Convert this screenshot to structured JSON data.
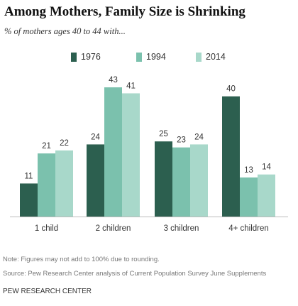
{
  "title": "Among Mothers, Family Size is Shrinking",
  "subtitle": "% of mothers ages 40 to 44 with...",
  "legend": [
    {
      "label": "1976",
      "color": "#2c5f4f"
    },
    {
      "label": "1994",
      "color": "#7bc1ad"
    },
    {
      "label": "2014",
      "color": "#a8d8ca"
    }
  ],
  "chart_data": {
    "type": "bar",
    "categories": [
      "1 child",
      "2 children",
      "3 children",
      "4+ children"
    ],
    "series": [
      {
        "name": "1976",
        "values": [
          11,
          24,
          25,
          40
        ]
      },
      {
        "name": "1994",
        "values": [
          21,
          43,
          23,
          13
        ]
      },
      {
        "name": "2014",
        "values": [
          22,
          41,
          24,
          14
        ]
      }
    ],
    "ylim": [
      0,
      43
    ],
    "grid": false,
    "legend_position": "top"
  },
  "note": "Note: Figures may not add to 100% due to rounding.",
  "source": "Source: Pew Research Center analysis of Current Population Survey June Supplements",
  "org": "PEW RESEARCH CENTER"
}
